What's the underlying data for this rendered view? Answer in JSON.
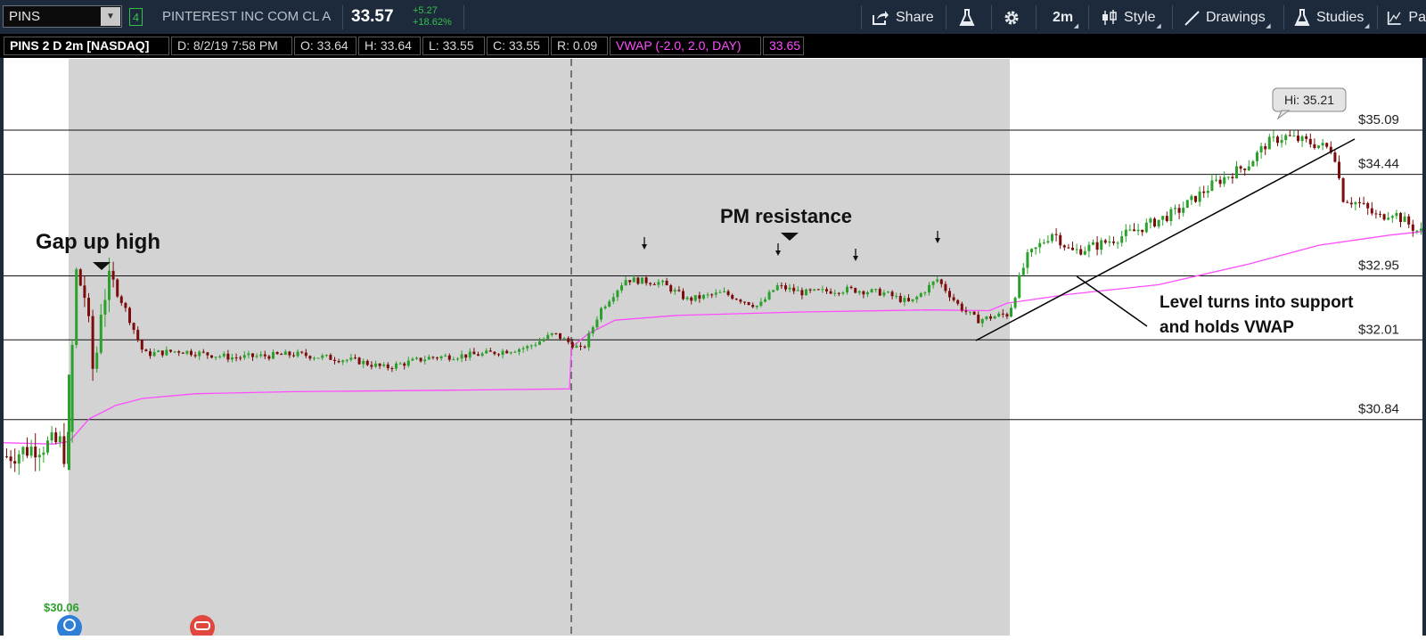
{
  "header": {
    "symbol": "PINS",
    "link_number": "4",
    "company": "PINTEREST INC COM CL A",
    "last": "33.57",
    "change": "+5.27",
    "change_pct": "+18.62%",
    "share_label": "Share",
    "interval": "2m",
    "style_label": "Style",
    "drawings_label": "Drawings",
    "studies_label": "Studies",
    "more_label": "Pa"
  },
  "infobar": {
    "title": "PINS 2 D 2m [NASDAQ]",
    "date": "D: 8/2/19 7:58 PM",
    "open": "O: 33.64",
    "high": "H: 33.64",
    "low": "L: 33.55",
    "close": "C: 33.55",
    "range": "R: 0.09",
    "vwap_label": "VWAP (-2.0, 2.0, DAY)",
    "vwap_value": "33.65"
  },
  "colors": {
    "up": "#2ca02c",
    "down": "#7a0c0c",
    "vwap": "#ff4dff",
    "premarket_bg": "#d3d3d3",
    "header_bg": "#1c2a3c"
  },
  "annotations": {
    "gap_up_high": "Gap up high",
    "pm_resistance": "PM resistance",
    "level_support_line1": "Level turns into support",
    "level_support_line2": "and holds VWAP",
    "hi_bubble": "Hi: 35.21",
    "low_marker": "$30.06"
  },
  "chart_data": {
    "type": "candlestick",
    "title": "PINS 2 D 2m [NASDAQ]",
    "price_levels": [
      35.09,
      34.44,
      32.95,
      32.01,
      30.84
    ],
    "price_level_labels": [
      "$35.09",
      "$34.44",
      "$32.95",
      "$32.01",
      "$30.84"
    ],
    "high": 35.21,
    "low": 30.06,
    "vwap_last": 33.65
  }
}
